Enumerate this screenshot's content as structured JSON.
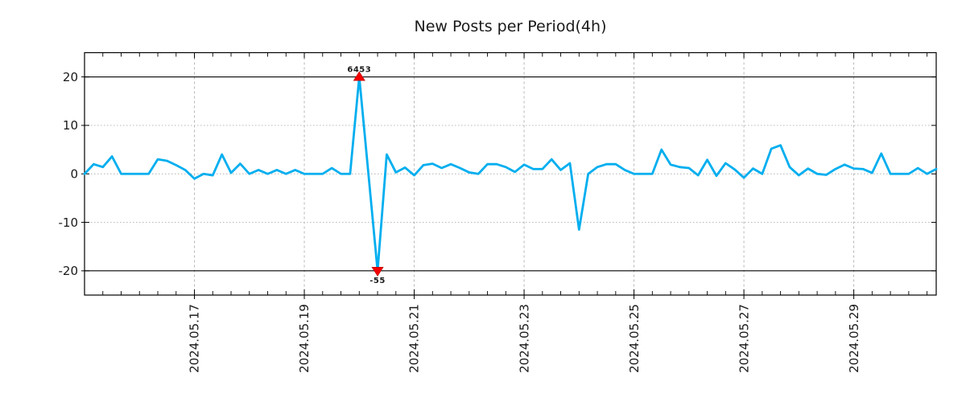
{
  "title": "New Posts per Period(4h)",
  "colors": {
    "line": "#00AEEF",
    "marker_fill": "#f20000",
    "marker_edge": "#b40000",
    "grid": "#b0b0b0",
    "axis": "#000000",
    "clip_line": "#000000",
    "text": "#1a1a1a",
    "background": "#ffffff"
  },
  "chart_data": {
    "type": "line",
    "title": "New Posts per Period(4h)",
    "x_start": "2024.05.15 00:00",
    "x_interval_hours": 4,
    "x_minor_tick_hours": 8,
    "values": [
      0,
      2,
      1.4,
      3.6,
      0,
      0,
      0,
      0,
      3,
      2.7,
      1.8,
      0.8,
      -1,
      0,
      -0.3,
      4,
      0.2,
      2.1,
      0,
      0.8,
      0,
      0.8,
      0,
      0.8,
      0,
      0,
      0,
      1.2,
      0,
      0,
      6453,
      0,
      -55,
      4,
      0.3,
      1.3,
      -0.3,
      1.8,
      2.1,
      1.2,
      2,
      1.2,
      0.3,
      0,
      2,
      2,
      1.4,
      0.4,
      1.9,
      1,
      1,
      3,
      0.8,
      2.2,
      -11.5,
      0,
      1.4,
      2,
      2,
      0.8,
      0,
      0,
      0,
      5,
      1.9,
      1.4,
      1.2,
      -0.3,
      2.9,
      -0.4,
      2.2,
      0.9,
      -0.8,
      1.1,
      0,
      5.2,
      5.9,
      1.4,
      -0.3,
      1.1,
      0,
      -0.2,
      1,
      1.9,
      1.1,
      1,
      0.2,
      4.2,
      0,
      0,
      0,
      1.2,
      0,
      1
    ],
    "ylim": [
      -25,
      25
    ],
    "yticks": [
      -20,
      -10,
      0,
      10,
      20
    ],
    "clip_values_at": [
      -20,
      20
    ],
    "hlines": [
      20,
      -20
    ],
    "grid": true,
    "legend": false,
    "xtick_labels": [
      "2024.05.17",
      "2024.05.19",
      "2024.05.21",
      "2024.05.23",
      "2024.05.25",
      "2024.05.27",
      "2024.05.29"
    ],
    "xtick_indices": [
      12,
      24,
      36,
      48,
      60,
      72,
      84
    ],
    "minor_tick_every": 2,
    "annotations": [
      {
        "text": "6453",
        "index": 30,
        "position": "above"
      },
      {
        "text": "-55",
        "index": 32,
        "position": "below"
      }
    ]
  }
}
